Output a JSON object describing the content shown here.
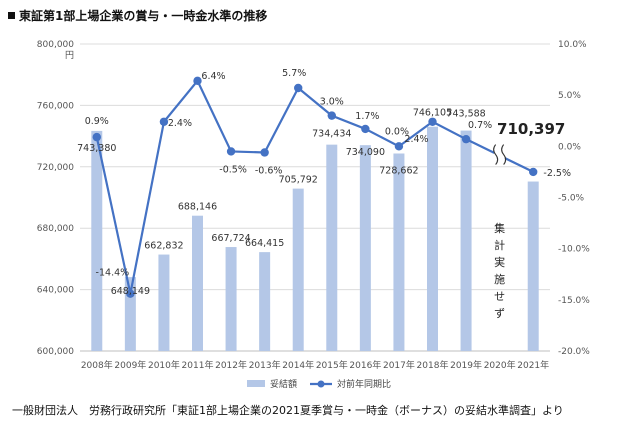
{
  "title": "東証第1部上場企業の賞与・一時金水準の推移",
  "source": "一般財団法人　労務行政研究所「東証1部上場企業の2021夏季賞与・一時金（ボーナス）の妥結水準調査」より",
  "chart_data": {
    "type": "bar+line",
    "categories": [
      "2008年",
      "2009年",
      "2010年",
      "2011年",
      "2012年",
      "2013年",
      "2014年",
      "2015年",
      "2016年",
      "2017年",
      "2018年",
      "2019年",
      "2020年",
      "2021年"
    ],
    "series": [
      {
        "name": "妥結額",
        "axis": "left",
        "values": [
          743380,
          648149,
          662832,
          688146,
          667724,
          664415,
          705792,
          734434,
          734090,
          728662,
          746105,
          743588,
          null,
          710397
        ],
        "labels": [
          "743,380",
          "648,149",
          "662,832",
          "688,146",
          "667,724",
          "664,415",
          "705,792",
          "734,434",
          "734,090",
          "728,662",
          "746,105",
          "743,588",
          "",
          "710,397"
        ],
        "color": "#b4c7e7"
      },
      {
        "name": "対前年同期比",
        "axis": "right",
        "values": [
          0.9,
          -14.4,
          2.4,
          6.4,
          -0.5,
          -0.6,
          5.7,
          3.0,
          1.7,
          0.0,
          2.4,
          0.7,
          null,
          -2.5
        ],
        "labels": [
          "0.9%",
          "-14.4%",
          "2.4%",
          "6.4%",
          "-0.5%",
          "-0.6%",
          "5.7%",
          "3.0%",
          "1.7%",
          "0.0%",
          "2.4%",
          "0.7%",
          "",
          "-2.5%"
        ],
        "color": "#4472c4"
      }
    ],
    "y_left": {
      "unit": "円",
      "ylim": [
        600000,
        800000
      ],
      "ticks": [
        "800,000",
        "760,000",
        "720,000",
        "680,000",
        "640,000",
        "600,000"
      ]
    },
    "y_right": {
      "ylim": [
        -20.0,
        10.0
      ],
      "ticks": [
        "10.0%",
        "5.0%",
        "0.0%",
        "-5.0%",
        "-10.0%",
        "-15.0%",
        "-20.0%"
      ]
    },
    "annotation": "集計実施せず",
    "legend_position": "bottom"
  },
  "colors": {
    "bar": "#b4c7e7",
    "line": "#4472c4"
  }
}
